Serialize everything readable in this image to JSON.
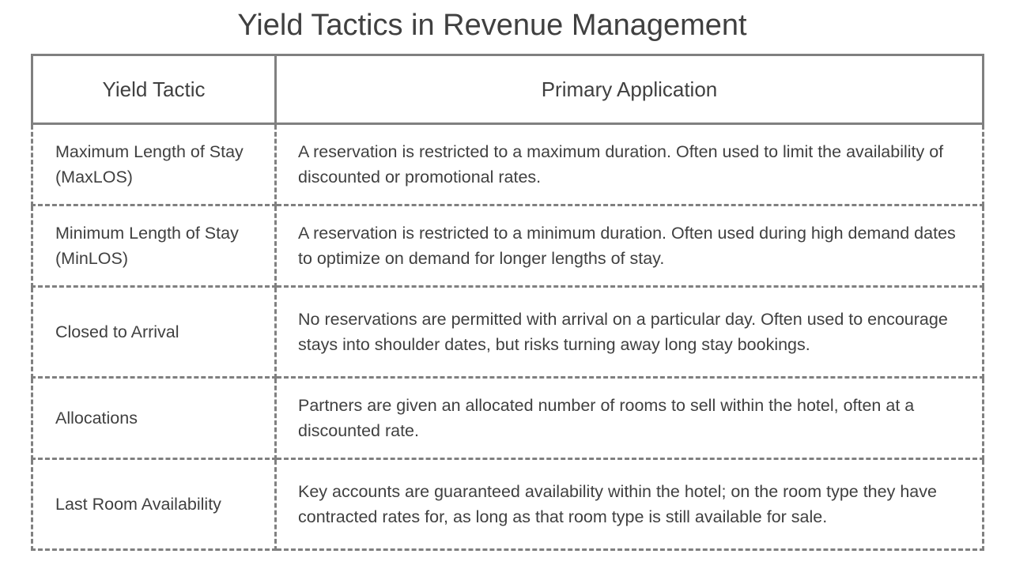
{
  "title": "Yield Tactics in Revenue Management",
  "table": {
    "headers": [
      "Yield Tactic",
      "Primary Application"
    ],
    "rows": [
      {
        "tactic": "Maximum Length of Stay (MaxLOS)",
        "application": "A reservation is restricted to a maximum duration. Often used to limit the availability of discounted or promotional rates."
      },
      {
        "tactic": "Minimum Length of Stay (MinLOS)",
        "application": "A reservation is restricted to a minimum duration. Often used during high demand dates to optimize on demand for longer lengths of stay."
      },
      {
        "tactic": "Closed to Arrival",
        "application": "No reservations are permitted with arrival on a particular day. Often used to encourage stays into shoulder dates, but risks turning away long stay bookings."
      },
      {
        "tactic": "Allocations",
        "application": "Partners are given an allocated number of rooms to sell within the hotel, often at a discounted rate."
      },
      {
        "tactic": "Last Room Availability",
        "application": "Key accounts are guaranteed availability within the hotel; on the room type they have contracted rates for, as long as that room type is still available for sale."
      }
    ]
  },
  "colors": {
    "text": "#404040",
    "border": "#808080",
    "background": "#ffffff"
  }
}
